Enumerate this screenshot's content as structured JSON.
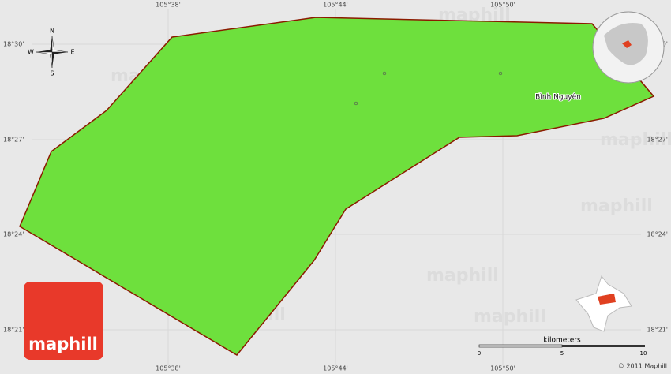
{
  "map": {
    "latitude_labels": [
      "18°30'",
      "18°27'",
      "18°24'",
      "18°21'"
    ],
    "longitude_labels": [
      "105°38'",
      "105°44'",
      "105°50'"
    ],
    "place": "Bình Nguyên",
    "compass": {
      "north": "N",
      "south": "S",
      "east": "E",
      "west": "W"
    },
    "scale": {
      "unit": "kilometers",
      "ticks": [
        "0",
        "5",
        "10"
      ]
    },
    "logo": "maphill",
    "watermark": "maphill",
    "copyright": "© 2011 Maphill"
  }
}
